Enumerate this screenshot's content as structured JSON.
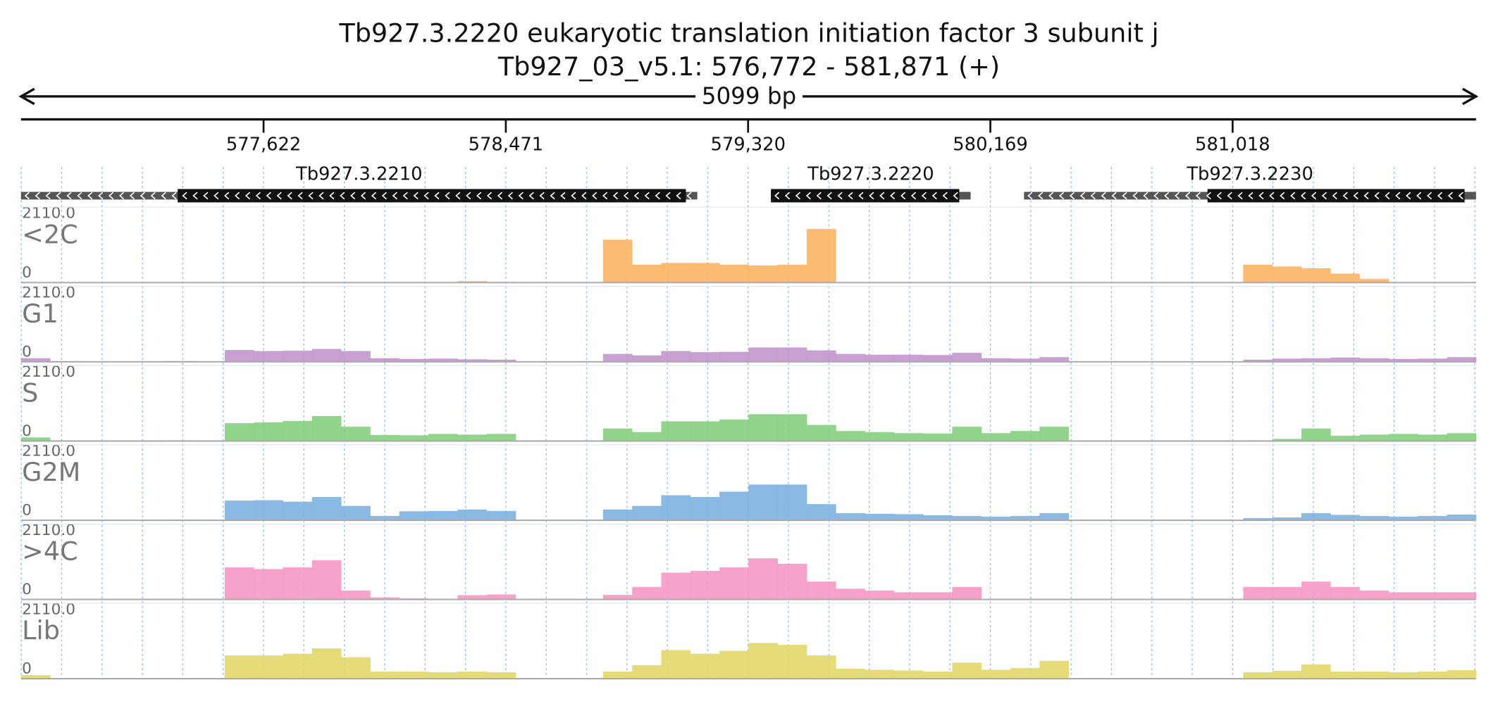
{
  "chart_data": {
    "type": "coverage",
    "title": "Tb927.3.2220  eukaryotic translation initiation factor 3 subunit j",
    "subtitle": "Tb927_03_v5.1: 576,772 - 581,871 (+)",
    "span_label": "5099 bp",
    "xlim": [
      576772,
      581871
    ],
    "xticks": [
      {
        "value": 577622,
        "label": "577,622"
      },
      {
        "value": 578471,
        "label": "578,471"
      },
      {
        "value": 579320,
        "label": "579,320"
      },
      {
        "value": 580169,
        "label": "580,169"
      },
      {
        "value": 581018,
        "label": "581,018"
      }
    ],
    "ylim": [
      0,
      2110
    ],
    "yticks": [
      0,
      {
        "value": 2110,
        "label": "2110.0"
      }
    ],
    "grid": true,
    "genes": [
      {
        "name": "Tb927.3.2210",
        "start": 576772,
        "end": 579142,
        "cds_start": 577321,
        "cds_end": 579102,
        "strand": "-"
      },
      {
        "name": "Tb927.3.2220",
        "start": 579400,
        "end": 580100,
        "cds_start": 579400,
        "cds_end": 580060,
        "strand": "-"
      },
      {
        "name": "Tb927.3.2230",
        "start": 580287,
        "end": 581871,
        "cds_start": 580930,
        "cds_end": 581831,
        "strand": "-"
      }
    ],
    "series": [
      {
        "name": "<2C",
        "color": "#fdb462",
        "values": [
          0,
          0,
          0,
          0,
          0,
          0,
          0,
          0,
          0,
          0,
          0,
          0,
          0,
          0,
          0,
          40,
          20,
          0,
          0,
          0,
          1200,
          500,
          550,
          550,
          500,
          480,
          500,
          1500,
          0,
          0,
          0,
          0,
          0,
          0,
          0,
          0,
          0,
          0,
          0,
          0,
          0,
          0,
          500,
          450,
          400,
          250,
          100,
          0,
          0,
          0
        ]
      },
      {
        "name": "G1",
        "color": "#c195cb",
        "values": [
          100,
          20,
          0,
          0,
          10,
          20,
          0,
          330,
          300,
          310,
          360,
          300,
          100,
          80,
          90,
          70,
          60,
          0,
          0,
          0,
          220,
          180,
          300,
          270,
          280,
          400,
          400,
          320,
          220,
          200,
          200,
          190,
          250,
          100,
          90,
          130,
          0,
          0,
          0,
          0,
          0,
          0,
          60,
          90,
          100,
          120,
          100,
          80,
          90,
          130
        ]
      },
      {
        "name": "S",
        "color": "#86cf7e",
        "values": [
          100,
          0,
          0,
          0,
          10,
          20,
          0,
          500,
          520,
          560,
          700,
          400,
          170,
          160,
          200,
          180,
          200,
          0,
          0,
          0,
          350,
          250,
          550,
          550,
          600,
          750,
          750,
          450,
          280,
          250,
          220,
          210,
          400,
          220,
          280,
          400,
          0,
          0,
          0,
          0,
          0,
          0,
          20,
          60,
          350,
          150,
          180,
          200,
          180,
          220
        ]
      },
      {
        "name": "G2M",
        "color": "#7db3e1",
        "values": [
          0,
          0,
          0,
          0,
          10,
          20,
          0,
          550,
          560,
          520,
          650,
          400,
          120,
          250,
          260,
          300,
          260,
          0,
          0,
          0,
          300,
          400,
          700,
          650,
          800,
          1000,
          1000,
          450,
          200,
          180,
          170,
          140,
          120,
          100,
          120,
          200,
          0,
          0,
          0,
          0,
          0,
          0,
          60,
          80,
          200,
          150,
          120,
          100,
          120,
          160
        ]
      },
      {
        "name": ">4C",
        "color": "#f598c4",
        "values": [
          0,
          0,
          0,
          0,
          0,
          0,
          0,
          900,
          850,
          900,
          1100,
          250,
          60,
          30,
          0,
          120,
          140,
          0,
          0,
          0,
          130,
          350,
          750,
          800,
          900,
          1150,
          1000,
          500,
          300,
          250,
          200,
          200,
          350,
          0,
          0,
          0,
          0,
          0,
          0,
          0,
          0,
          0,
          350,
          350,
          500,
          350,
          250,
          200,
          200,
          200
        ]
      },
      {
        "name": "Lib",
        "color": "#e2d86a",
        "values": [
          100,
          20,
          0,
          0,
          10,
          20,
          0,
          650,
          650,
          700,
          850,
          600,
          200,
          200,
          180,
          200,
          180,
          0,
          0,
          0,
          200,
          380,
          800,
          700,
          780,
          1000,
          950,
          650,
          280,
          250,
          230,
          200,
          450,
          250,
          300,
          500,
          0,
          0,
          0,
          0,
          0,
          0,
          180,
          220,
          400,
          200,
          200,
          180,
          200,
          240
        ]
      }
    ]
  }
}
